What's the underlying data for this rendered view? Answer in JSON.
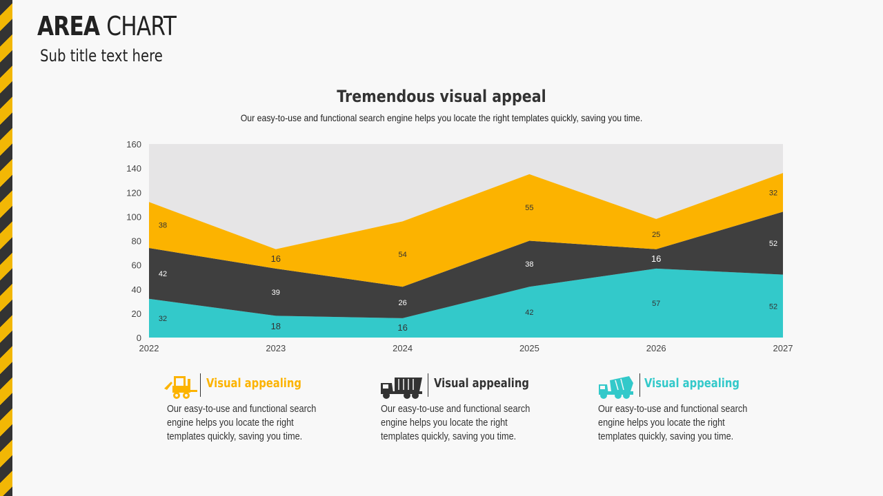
{
  "header": {
    "title_bold": "AREA",
    "title_rest": "CHART",
    "subtitle": "Sub title text here"
  },
  "colors": {
    "yellow": "#fcb300",
    "dark": "#3f3f3f",
    "teal": "#33c9ca",
    "background_area": "#e6e5e6",
    "text": "#333333"
  },
  "chart_data": {
    "type": "area",
    "stacked": true,
    "title": "Tremendous visual appeal",
    "subtitle": "Our easy-to-use and functional search engine helps you locate the right templates quickly, saving you time.",
    "categories": [
      "2022",
      "2023",
      "2024",
      "2025",
      "2026",
      "2027"
    ],
    "ylim": [
      0,
      160
    ],
    "yticks": [
      0,
      20,
      40,
      60,
      80,
      100,
      120,
      140,
      160
    ],
    "series": [
      {
        "color": "#33c9ca",
        "values": [
          32,
          18,
          16,
          42,
          57,
          52
        ]
      },
      {
        "color": "#3f3f3f",
        "values": [
          42,
          39,
          26,
          38,
          16,
          52
        ]
      },
      {
        "color": "#fcb300",
        "values": [
          38,
          16,
          54,
          55,
          25,
          32
        ]
      }
    ],
    "grid": false,
    "legend": "none"
  },
  "cards": [
    {
      "icon": "forklift-icon",
      "heading": "Visual appealing",
      "color": "#fcb300",
      "text": "Our easy-to-use and functional search engine helps you locate the right templates quickly, saving you time."
    },
    {
      "icon": "dump-truck-icon",
      "heading": "Visual appealing",
      "color": "#333333",
      "text": "Our easy-to-use and functional search engine helps you locate the right templates quickly, saving you time."
    },
    {
      "icon": "cement-mixer-icon",
      "heading": "Visual appealing",
      "color": "#33c9ca",
      "text": "Our easy-to-use and functional search engine helps you locate the right templates quickly, saving you time."
    }
  ]
}
